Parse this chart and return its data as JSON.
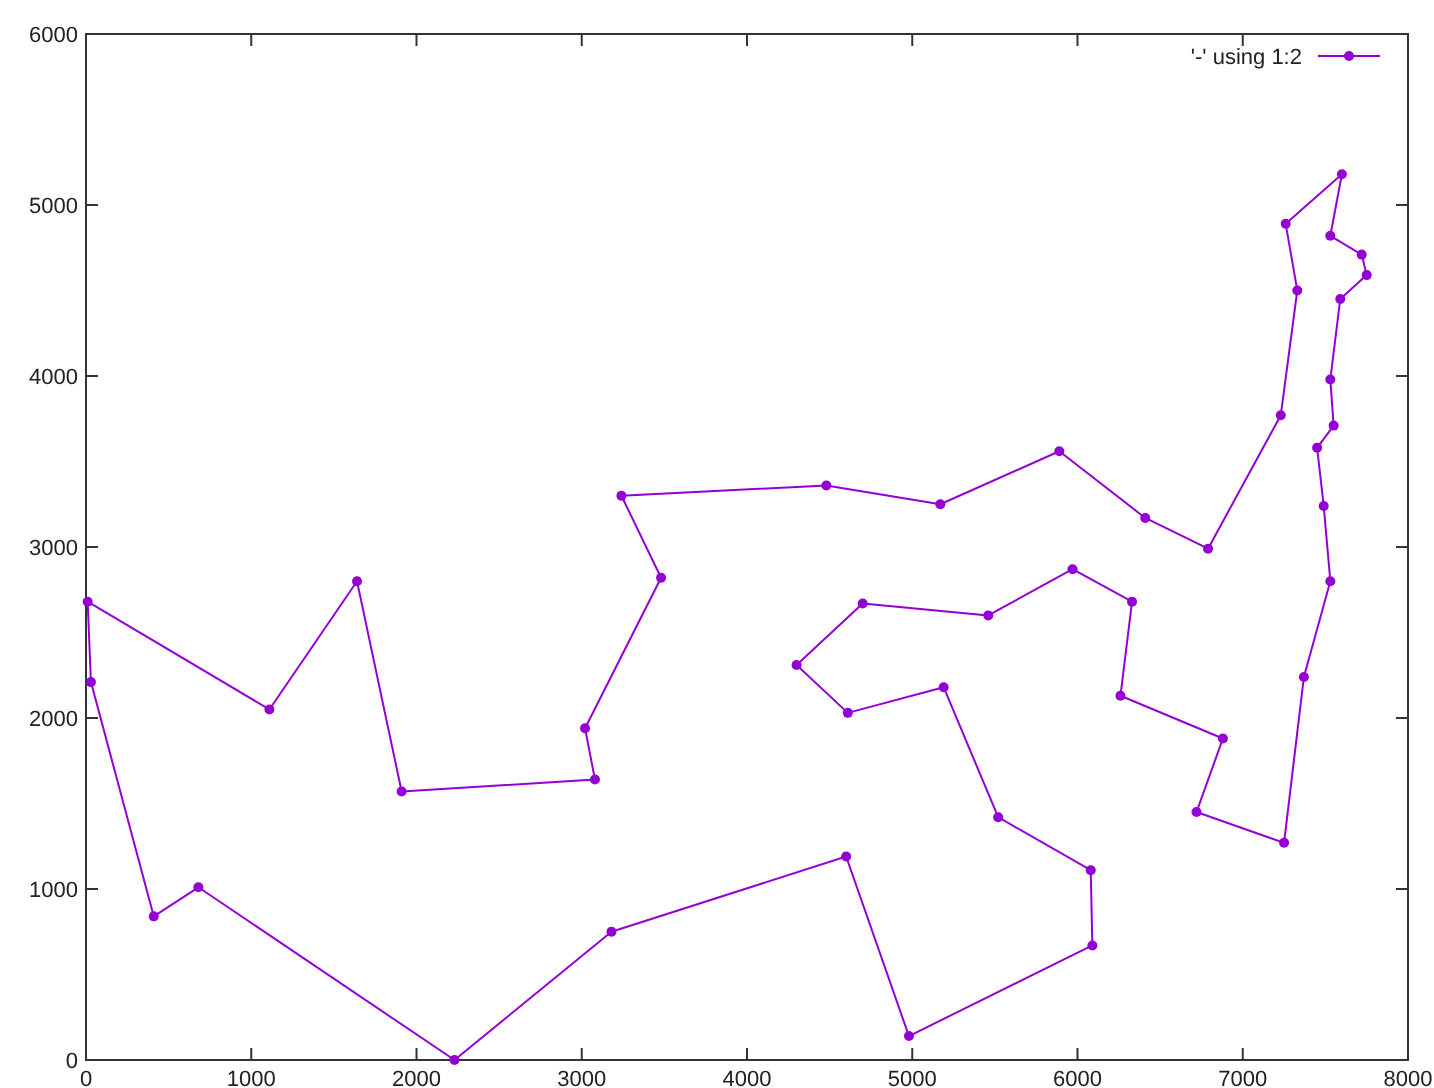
{
  "chart_data": {
    "type": "line",
    "series": [
      {
        "name": "'-' using 1:2",
        "color": "#9400d3",
        "x": [
          10,
          30,
          410,
          680,
          2230,
          3180,
          4600,
          4980,
          6090,
          6080,
          5520,
          5190,
          4610,
          4300,
          4700,
          5460,
          5970,
          6330,
          6260,
          6880,
          6720,
          7250,
          7370,
          7530,
          7490,
          7450,
          7550,
          7530,
          7590,
          7750,
          7720,
          7530,
          7600,
          7260,
          7330,
          7230,
          6790,
          6410,
          5890,
          5170,
          4480,
          3240,
          3480,
          3020,
          3080,
          1910,
          1640,
          1110
        ],
        "values": [
          2680,
          2210,
          840,
          1010,
          0,
          750,
          1190,
          140,
          670,
          1110,
          1420,
          2180,
          2030,
          2310,
          2670,
          2600,
          2870,
          2680,
          2130,
          1880,
          1450,
          1270,
          2240,
          2800,
          3240,
          3580,
          3710,
          3980,
          4450,
          4590,
          4710,
          4820,
          5180,
          4890,
          4500,
          3770,
          2990,
          3170,
          3560,
          3250,
          3360,
          3300,
          2820,
          1940,
          1640,
          1570,
          2800,
          2050
        ]
      },
      {
        "color": "#9400d3",
        "marker": "none",
        "x": [
          1110,
          10
        ],
        "values": [
          2050,
          2680
        ]
      }
    ],
    "xlim": [
      0,
      8000
    ],
    "xticks": [
      0,
      1000,
      2000,
      3000,
      4000,
      5000,
      6000,
      7000,
      8000
    ],
    "ylim": [
      0,
      6000
    ],
    "yticks": [
      0,
      1000,
      2000,
      3000,
      4000,
      5000,
      6000
    ],
    "legend": "top right",
    "marker": "circle",
    "line_style": "solid"
  }
}
